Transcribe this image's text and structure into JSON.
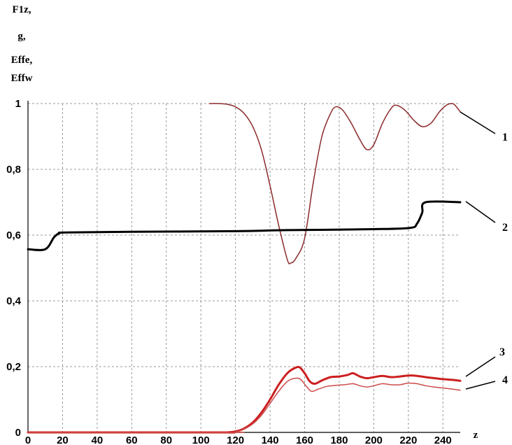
{
  "chart_data": {
    "type": "line",
    "ylabel_lines": [
      "F1z,",
      "g,",
      "Effe,",
      "Effw"
    ],
    "xlabel": "z",
    "xlim": [
      0,
      250
    ],
    "ylim": [
      0,
      1
    ],
    "x_ticks": [
      0,
      20,
      40,
      60,
      80,
      100,
      120,
      140,
      160,
      180,
      200,
      220,
      240
    ],
    "x_tick_labels": [
      "0",
      "20",
      "40",
      "60",
      "80",
      "100",
      "120",
      "140",
      "160",
      "180",
      "200",
      "220",
      "240"
    ],
    "y_ticks": [
      0,
      0.2,
      0.4,
      0.6,
      0.8,
      1
    ],
    "y_tick_labels": [
      "0",
      "0,2",
      "0,4",
      "0,6",
      "0,8",
      "1"
    ],
    "grid": true,
    "series": [
      {
        "name": "1",
        "color": "#8b2a2a",
        "width": 1.5,
        "points": [
          [
            105,
            1.0
          ],
          [
            110,
            1.0
          ],
          [
            115,
            0.998
          ],
          [
            120,
            0.99
          ],
          [
            125,
            0.97
          ],
          [
            130,
            0.93
          ],
          [
            135,
            0.86
          ],
          [
            140,
            0.75
          ],
          [
            145,
            0.63
          ],
          [
            150,
            0.525
          ],
          [
            152,
            0.515
          ],
          [
            155,
            0.53
          ],
          [
            160,
            0.59
          ],
          [
            165,
            0.76
          ],
          [
            170,
            0.9
          ],
          [
            175,
            0.97
          ],
          [
            178,
            0.99
          ],
          [
            182,
            0.98
          ],
          [
            187,
            0.94
          ],
          [
            192,
            0.89
          ],
          [
            196,
            0.86
          ],
          [
            200,
            0.875
          ],
          [
            205,
            0.94
          ],
          [
            210,
            0.985
          ],
          [
            213,
            0.995
          ],
          [
            218,
            0.98
          ],
          [
            223,
            0.95
          ],
          [
            228,
            0.93
          ],
          [
            233,
            0.94
          ],
          [
            238,
            0.975
          ],
          [
            242,
            0.995
          ],
          [
            245,
            1.0
          ],
          [
            247,
            0.995
          ],
          [
            250,
            0.975
          ]
        ]
      },
      {
        "name": "2",
        "color": "#000000",
        "width": 3,
        "points": [
          [
            0,
            0.557
          ],
          [
            10,
            0.557
          ],
          [
            15,
            0.593
          ],
          [
            18,
            0.605
          ],
          [
            22,
            0.608
          ],
          [
            60,
            0.61
          ],
          [
            120,
            0.612
          ],
          [
            150,
            0.615
          ],
          [
            200,
            0.618
          ],
          [
            221,
            0.622
          ],
          [
            225,
            0.635
          ],
          [
            228,
            0.668
          ],
          [
            230,
            0.7
          ],
          [
            250,
            0.7
          ]
        ]
      },
      {
        "name": "3",
        "color": "#cc1f1f",
        "width": 3,
        "points": [
          [
            0,
            0.0
          ],
          [
            110,
            0.0
          ],
          [
            115,
            0.0
          ],
          [
            120,
            0.003
          ],
          [
            125,
            0.012
          ],
          [
            130,
            0.03
          ],
          [
            135,
            0.06
          ],
          [
            140,
            0.1
          ],
          [
            145,
            0.145
          ],
          [
            150,
            0.18
          ],
          [
            154,
            0.195
          ],
          [
            157,
            0.198
          ],
          [
            160,
            0.18
          ],
          [
            163,
            0.155
          ],
          [
            166,
            0.148
          ],
          [
            170,
            0.158
          ],
          [
            175,
            0.168
          ],
          [
            180,
            0.17
          ],
          [
            185,
            0.175
          ],
          [
            188,
            0.18
          ],
          [
            192,
            0.17
          ],
          [
            196,
            0.165
          ],
          [
            200,
            0.168
          ],
          [
            205,
            0.172
          ],
          [
            210,
            0.168
          ],
          [
            215,
            0.17
          ],
          [
            220,
            0.173
          ],
          [
            225,
            0.172
          ],
          [
            230,
            0.168
          ],
          [
            235,
            0.165
          ],
          [
            240,
            0.162
          ],
          [
            245,
            0.16
          ],
          [
            250,
            0.157
          ]
        ]
      },
      {
        "name": "4",
        "color": "#cc4a4a",
        "width": 1.5,
        "points": [
          [
            0,
            0.0
          ],
          [
            115,
            0.0
          ],
          [
            120,
            0.002
          ],
          [
            125,
            0.01
          ],
          [
            130,
            0.026
          ],
          [
            135,
            0.052
          ],
          [
            140,
            0.088
          ],
          [
            145,
            0.125
          ],
          [
            150,
            0.155
          ],
          [
            155,
            0.165
          ],
          [
            158,
            0.16
          ],
          [
            161,
            0.14
          ],
          [
            164,
            0.125
          ],
          [
            168,
            0.132
          ],
          [
            173,
            0.14
          ],
          [
            178,
            0.143
          ],
          [
            183,
            0.145
          ],
          [
            188,
            0.148
          ],
          [
            192,
            0.142
          ],
          [
            196,
            0.138
          ],
          [
            200,
            0.142
          ],
          [
            205,
            0.148
          ],
          [
            210,
            0.145
          ],
          [
            215,
            0.145
          ],
          [
            220,
            0.15
          ],
          [
            225,
            0.148
          ],
          [
            230,
            0.142
          ],
          [
            235,
            0.138
          ],
          [
            240,
            0.135
          ],
          [
            245,
            0.132
          ],
          [
            250,
            0.128
          ]
        ]
      }
    ],
    "annotations": [
      {
        "label": "1",
        "series": "1"
      },
      {
        "label": "2",
        "series": "2"
      },
      {
        "label": "3",
        "series": "3"
      },
      {
        "label": "4",
        "series": "4"
      }
    ]
  }
}
